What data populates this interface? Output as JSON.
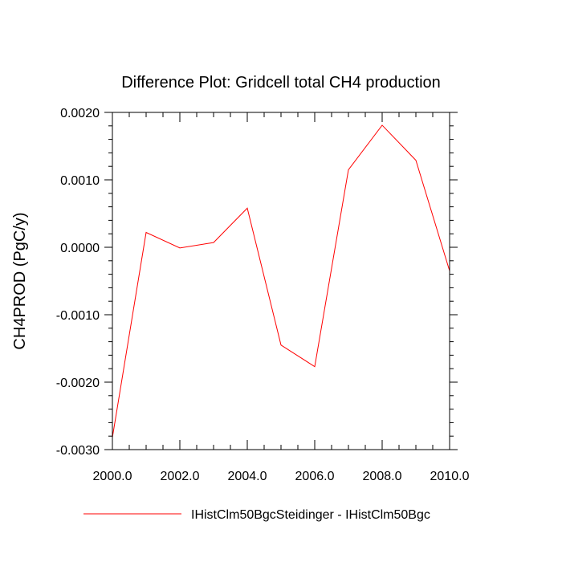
{
  "chart_data": {
    "type": "line",
    "title": "Difference Plot: Gridcell total CH4 production",
    "xlabel": "",
    "ylabel": "CH4PROD  (PgC/y)",
    "xlim": [
      2000,
      2010
    ],
    "ylim": [
      -0.003,
      0.002
    ],
    "x_ticks": [
      2000,
      2002,
      2004,
      2006,
      2008,
      2010
    ],
    "x_tick_labels": [
      "2000.0",
      "2002.0",
      "2004.0",
      "2006.0",
      "2008.0",
      "2010.0"
    ],
    "y_ticks": [
      -0.003,
      -0.002,
      -0.001,
      0.0,
      0.001,
      0.002
    ],
    "y_tick_labels": [
      "-0.0030",
      "-0.0020",
      "-0.0010",
      "0.0000",
      "0.0010",
      "0.0020"
    ],
    "x": [
      2000,
      2001,
      2002,
      2003,
      2004,
      2005,
      2006,
      2007,
      2008,
      2009,
      2010
    ],
    "series": [
      {
        "name": "IHistClm50BgcSteidinger - IHistClm50Bgc",
        "color": "#ff0000",
        "values": [
          -0.00282,
          0.00022,
          -1e-05,
          7e-05,
          0.00058,
          -0.00145,
          -0.00177,
          0.00115,
          0.00181,
          0.00129,
          -0.00035
        ]
      }
    ],
    "legend": "bottom-center",
    "grid": false
  }
}
